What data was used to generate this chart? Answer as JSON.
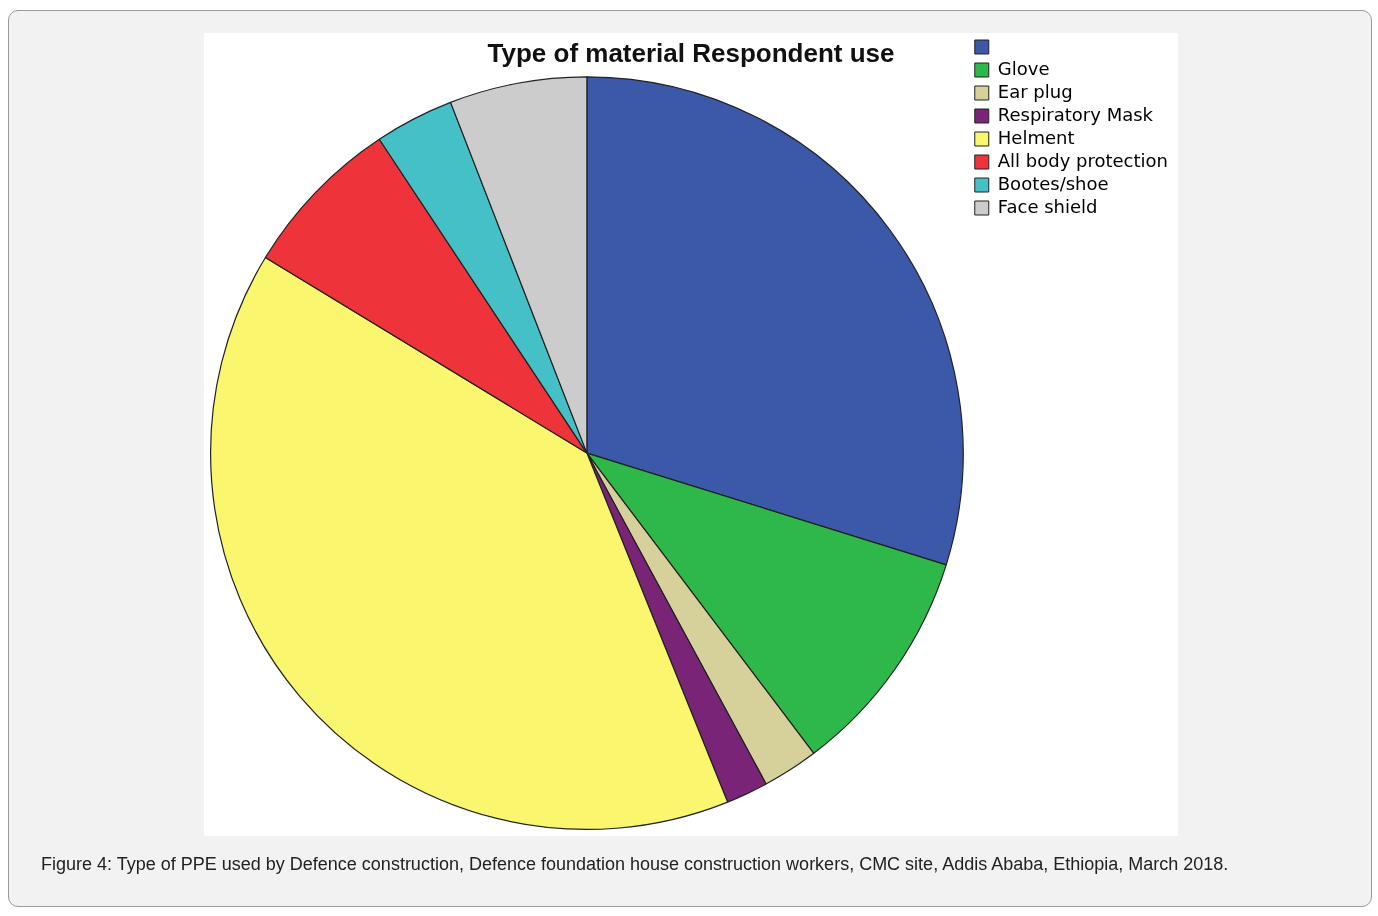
{
  "chart_data": {
    "type": "pie",
    "title": "Type of material Respondent use",
    "categories": [
      null,
      "Glove",
      "Ear plug",
      "Respiratory Mask",
      "Helment",
      "All body protection",
      "Bootes/shoe",
      "Face shield"
    ],
    "values": [
      29.8,
      9.9,
      2.4,
      1.8,
      39.8,
      7.0,
      3.4,
      5.9
    ],
    "colors": [
      "#3c58a8",
      "#2fb84a",
      "#d6d09a",
      "#7a2477",
      "#faf76e",
      "#ef333a",
      "#45c0c6",
      "#cccccc"
    ],
    "legend": "top right",
    "annotations": [
      "Figure 4: Type of PPE used by Defence construction, Defence foundation house construction workers, CMC site, Addis Ababa, Ethiopia, March 2018."
    ]
  }
}
